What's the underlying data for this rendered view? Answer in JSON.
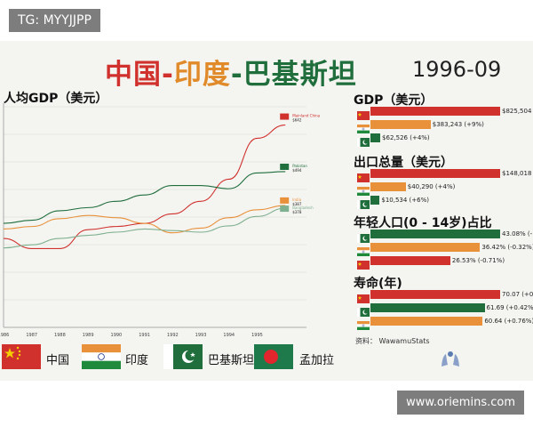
{
  "watermark_tag": "TG: MYYJJPP",
  "website": "www.oriemins.com",
  "title": {
    "part1": "中国",
    "dash1": "-",
    "part2": "印度",
    "dash2": "-",
    "part3": "巴基斯坦",
    "color1": "#d0312d",
    "color2": "#e08a2a",
    "color3": "#1f6e3c"
  },
  "date": "1996-09",
  "colors": {
    "china": "#d0312d",
    "india": "#e8913a",
    "pakistan": "#1f6e3c",
    "bangladesh": "#7fb08f"
  },
  "chart_data": [
    {
      "type": "line",
      "title": "",
      "ylabel": "人均GDP（美元）",
      "x": [
        1986,
        1987,
        1988,
        1989,
        1990,
        1991,
        1992,
        1993,
        1994,
        1995,
        1996
      ],
      "x_tick_labels": [
        "1986",
        "1987",
        "1988",
        "1989",
        "1990",
        "1991",
        "1992",
        "1993",
        "1994",
        "1995"
      ],
      "xlim": [
        1986,
        1996.75
      ],
      "ylim": [
        0,
        700
      ],
      "series": [
        {
          "name": "Mainland China",
          "label_value": "$642",
          "values": [
            282,
            250,
            250,
            310,
            320,
            330,
            360,
            400,
            470,
            600,
            642
          ]
        },
        {
          "name": "Pakistan",
          "label_value": "$494",
          "values": [
            330,
            340,
            370,
            380,
            400,
            420,
            450,
            450,
            440,
            490,
            494
          ]
        },
        {
          "name": "India",
          "label_value": "$387",
          "values": [
            312,
            320,
            345,
            355,
            348,
            330,
            300,
            315,
            348,
            373,
            387
          ]
        },
        {
          "name": "Bangladesh",
          "label_value": "$378",
          "values": [
            252,
            262,
            282,
            292,
            302,
            312,
            307,
            302,
            322,
            352,
            378
          ]
        }
      ]
    },
    {
      "type": "bar",
      "title": "GDP（美元）",
      "values": [
        825504,
        383243,
        62526
      ],
      "labels": [
        "$825,504 (+",
        "$383,243 (+9%)",
        "$62,526 (+4%)"
      ]
    },
    {
      "type": "bar",
      "title": "出口总量（美元）",
      "values": [
        148018,
        40290,
        10534
      ],
      "labels": [
        "$148,018 (",
        "$40,290 (+4%)",
        "$10,534 (+6%)"
      ]
    },
    {
      "type": "bar",
      "title": "年轻人口(0 - 14岁)占比",
      "values": [
        43.08,
        36.42,
        26.53
      ],
      "labels": [
        "43.08% (-",
        "36.42% (-0.32%)",
        "26.53% (-0.71%)"
      ]
    },
    {
      "type": "bar",
      "title": "寿命(年)",
      "values": [
        70.07,
        61.69,
        60.64
      ],
      "labels": [
        "70.07 (+0.3",
        "61.69 (+0.42%)",
        "60.64 (+0.76%)"
      ]
    }
  ],
  "source": "资料： WawamuStats",
  "legend": [
    {
      "label": "中国"
    },
    {
      "label": "印度"
    },
    {
      "label": "巴基斯坦"
    },
    {
      "label": "孟加拉"
    }
  ]
}
